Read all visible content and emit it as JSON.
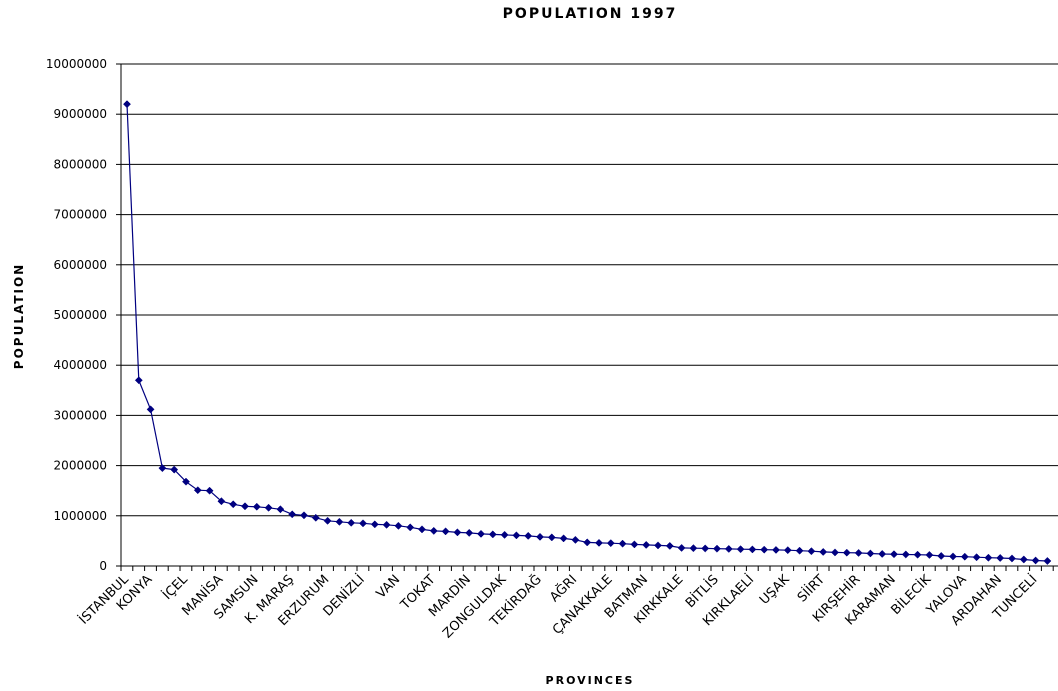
{
  "chart_data": {
    "type": "line",
    "title": "POPULATION 1997",
    "xlabel": "PROVINCES",
    "ylabel": "POPULATION",
    "ylim": [
      0,
      10000000
    ],
    "yticks": [
      0,
      1000000,
      2000000,
      3000000,
      4000000,
      5000000,
      6000000,
      7000000,
      8000000,
      9000000,
      10000000
    ],
    "ytick_labels": [
      "0",
      "1000000",
      "2000000",
      "3000000",
      "4000000",
      "5000000",
      "6000000",
      "7000000",
      "8000000",
      "9000000",
      "10000000"
    ],
    "grid": "horizontal",
    "legend": "none",
    "line_color": "#000080",
    "x_tick_labels": [
      {
        "index": 0,
        "label": "İSTANBUL"
      },
      {
        "index": 2,
        "label": "KONYA"
      },
      {
        "index": 5,
        "label": "İÇEL"
      },
      {
        "index": 8,
        "label": "MANİSA"
      },
      {
        "index": 11,
        "label": "SAMSUN"
      },
      {
        "index": 14,
        "label": "K. MARAŞ"
      },
      {
        "index": 17,
        "label": "ERZURUM"
      },
      {
        "index": 20,
        "label": "DENİZLİ"
      },
      {
        "index": 23,
        "label": "VAN"
      },
      {
        "index": 26,
        "label": "TOKAT"
      },
      {
        "index": 29,
        "label": "MARDİN"
      },
      {
        "index": 32,
        "label": "ZONGULDAK"
      },
      {
        "index": 35,
        "label": "TEKİRDAĞ"
      },
      {
        "index": 38,
        "label": "AĞRI"
      },
      {
        "index": 41,
        "label": "ÇANAKKALE"
      },
      {
        "index": 44,
        "label": "BATMAN"
      },
      {
        "index": 47,
        "label": "KIRKKALE"
      },
      {
        "index": 50,
        "label": "BİTLİS"
      },
      {
        "index": 53,
        "label": "KIRKLAELİ"
      },
      {
        "index": 56,
        "label": "UŞAK"
      },
      {
        "index": 59,
        "label": "SİİRT"
      },
      {
        "index": 62,
        "label": "KIRŞEHİR"
      },
      {
        "index": 65,
        "label": "KARAMAN"
      },
      {
        "index": 68,
        "label": "BİLECİK"
      },
      {
        "index": 71,
        "label": "YALOVA"
      },
      {
        "index": 74,
        "label": "ARDAHAN"
      },
      {
        "index": 77,
        "label": "TUNCELİ"
      }
    ],
    "values": [
      9200000,
      3700000,
      3120000,
      1950000,
      1920000,
      1680000,
      1510000,
      1500000,
      1290000,
      1230000,
      1190000,
      1180000,
      1160000,
      1130000,
      1030000,
      1010000,
      960000,
      900000,
      880000,
      860000,
      850000,
      830000,
      820000,
      800000,
      770000,
      730000,
      700000,
      690000,
      670000,
      660000,
      640000,
      630000,
      620000,
      610000,
      600000,
      580000,
      570000,
      550000,
      520000,
      470000,
      460000,
      455000,
      445000,
      430000,
      420000,
      410000,
      400000,
      360000,
      355000,
      350000,
      345000,
      340000,
      335000,
      330000,
      325000,
      320000,
      315000,
      305000,
      295000,
      280000,
      270000,
      265000,
      260000,
      250000,
      240000,
      235000,
      230000,
      225000,
      220000,
      200000,
      190000,
      185000,
      175000,
      165000,
      160000,
      150000,
      130000,
      110000,
      100000
    ]
  }
}
